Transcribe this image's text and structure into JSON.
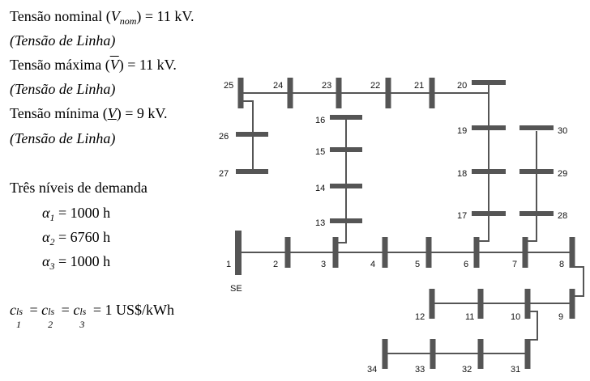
{
  "params": {
    "nominal_label": "Tensão nominal (",
    "nominal_sym": "V",
    "nominal_sub": "nom",
    "nominal_value": ") = 11 kV.",
    "nominal_note": "(Tensão de Linha)",
    "max_label": "Tensão máxima (",
    "max_sym": "V",
    "max_value": ") = 11 kV.",
    "max_note": "(Tensão de Linha)",
    "min_label": "Tensão mínima (",
    "min_sym": "V",
    "min_value": ") = 9 kV.",
    "min_note": "(Tensão de Linha)"
  },
  "demand": {
    "title": "Três níveis de demanda",
    "levels": [
      {
        "sym": "α",
        "sub": "1",
        "value": " = 1000 h"
      },
      {
        "sym": "α",
        "sub": "2",
        "value": " = 6760 h"
      },
      {
        "sym": "α",
        "sub": "3",
        "value": " = 1000 h"
      }
    ]
  },
  "cost": {
    "sym": "c",
    "sup": "ls",
    "subs": [
      "1",
      "2",
      "3"
    ],
    "eq": " = ",
    "value": " = 1 US$/kWh"
  },
  "network": {
    "substation_label": "SE",
    "bar_color": "#555555",
    "line_color": "#555555",
    "node_labels": [
      "1",
      "2",
      "3",
      "4",
      "5",
      "6",
      "7",
      "8",
      "9",
      "10",
      "11",
      "12",
      "13",
      "14",
      "15",
      "16",
      "17",
      "18",
      "19",
      "20",
      "21",
      "22",
      "23",
      "24",
      "25",
      "26",
      "27",
      "28",
      "29",
      "30",
      "31",
      "32",
      "33",
      "34"
    ]
  }
}
